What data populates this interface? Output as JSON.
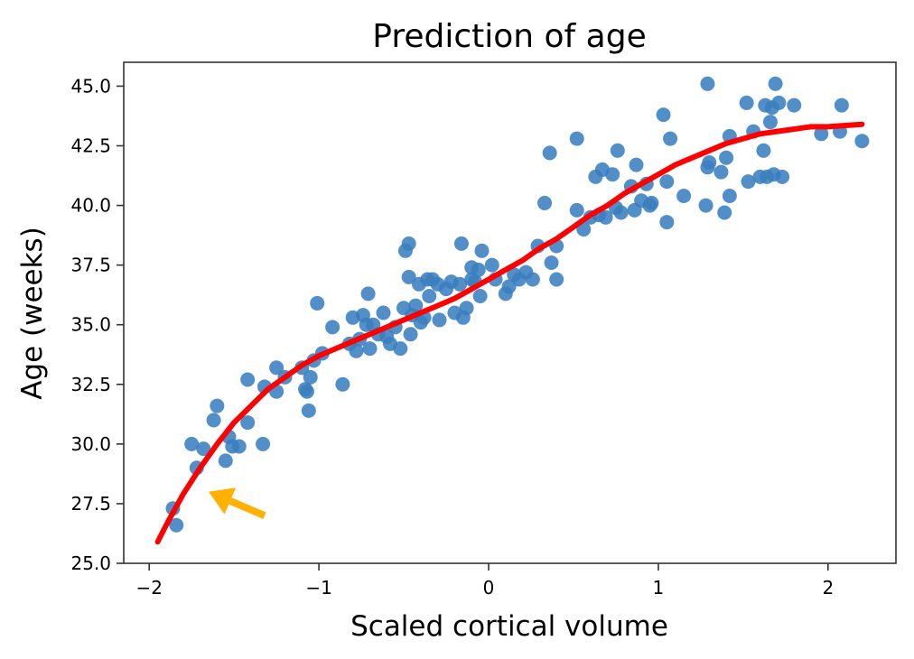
{
  "chart_data": {
    "type": "scatter",
    "title": "Prediction of age",
    "xlabel": "Scaled cortical volume",
    "ylabel": "Age (weeks)",
    "xlim": [
      -2.15,
      2.4
    ],
    "ylim": [
      25.0,
      46.0
    ],
    "x_ticks": [
      -2,
      -1,
      0,
      1,
      2
    ],
    "x_tick_labels": [
      "−2",
      "−1",
      "0",
      "1",
      "2"
    ],
    "y_ticks": [
      25.0,
      27.5,
      30.0,
      32.5,
      35.0,
      37.5,
      40.0,
      42.5,
      45.0
    ],
    "y_tick_labels": [
      "25.0",
      "27.5",
      "30.0",
      "32.5",
      "35.0",
      "37.5",
      "40.0",
      "42.5",
      "45.0"
    ],
    "grid": false,
    "colors": {
      "points": "#3a7ebf",
      "fit": "#ff0000",
      "arrow": "#ffb000"
    },
    "series": [
      {
        "type": "scatter",
        "points": [
          [
            -1.86,
            27.3
          ],
          [
            -1.84,
            26.6
          ],
          [
            -1.75,
            30.0
          ],
          [
            -1.72,
            29.0
          ],
          [
            -1.68,
            29.8
          ],
          [
            -1.62,
            31.0
          ],
          [
            -1.6,
            31.6
          ],
          [
            -1.55,
            29.3
          ],
          [
            -1.53,
            30.3
          ],
          [
            -1.51,
            29.9
          ],
          [
            -1.47,
            29.9
          ],
          [
            -1.42,
            32.7
          ],
          [
            -1.42,
            30.9
          ],
          [
            -1.33,
            30.0
          ],
          [
            -1.32,
            32.4
          ],
          [
            -1.25,
            33.2
          ],
          [
            -1.25,
            32.2
          ],
          [
            -1.2,
            32.8
          ],
          [
            -1.1,
            33.2
          ],
          [
            -1.08,
            32.3
          ],
          [
            -1.07,
            32.2
          ],
          [
            -1.06,
            31.4
          ],
          [
            -1.05,
            32.8
          ],
          [
            -1.03,
            33.5
          ],
          [
            -1.01,
            35.9
          ],
          [
            -0.98,
            33.8
          ],
          [
            -0.92,
            34.9
          ],
          [
            -0.86,
            32.5
          ],
          [
            -0.82,
            34.2
          ],
          [
            -0.8,
            35.3
          ],
          [
            -0.78,
            33.9
          ],
          [
            -0.76,
            34.4
          ],
          [
            -0.74,
            35.4
          ],
          [
            -0.72,
            35.0
          ],
          [
            -0.71,
            36.3
          ],
          [
            -0.7,
            34.0
          ],
          [
            -0.68,
            35.0
          ],
          [
            -0.65,
            34.6
          ],
          [
            -0.62,
            35.5
          ],
          [
            -0.6,
            34.5
          ],
          [
            -0.58,
            34.2
          ],
          [
            -0.55,
            34.9
          ],
          [
            -0.52,
            34.0
          ],
          [
            -0.5,
            35.7
          ],
          [
            -0.49,
            38.1
          ],
          [
            -0.47,
            38.4
          ],
          [
            -0.47,
            37.0
          ],
          [
            -0.46,
            34.6
          ],
          [
            -0.45,
            35.4
          ],
          [
            -0.43,
            35.8
          ],
          [
            -0.41,
            36.7
          ],
          [
            -0.4,
            35.1
          ],
          [
            -0.38,
            35.3
          ],
          [
            -0.36,
            36.9
          ],
          [
            -0.35,
            36.2
          ],
          [
            -0.33,
            36.9
          ],
          [
            -0.3,
            36.7
          ],
          [
            -0.29,
            35.2
          ],
          [
            -0.25,
            36.5
          ],
          [
            -0.22,
            36.8
          ],
          [
            -0.2,
            35.5
          ],
          [
            -0.17,
            36.7
          ],
          [
            -0.16,
            38.4
          ],
          [
            -0.15,
            35.3
          ],
          [
            -0.13,
            35.7
          ],
          [
            -0.1,
            36.9
          ],
          [
            -0.1,
            37.4
          ],
          [
            -0.08,
            36.8
          ],
          [
            -0.06,
            37.3
          ],
          [
            -0.05,
            36.2
          ],
          [
            -0.04,
            38.1
          ],
          [
            0.02,
            37.5
          ],
          [
            0.04,
            36.9
          ],
          [
            0.1,
            36.3
          ],
          [
            0.12,
            36.6
          ],
          [
            0.15,
            37.1
          ],
          [
            0.18,
            36.9
          ],
          [
            0.22,
            37.2
          ],
          [
            0.26,
            36.9
          ],
          [
            0.29,
            38.3
          ],
          [
            0.33,
            40.1
          ],
          [
            0.36,
            42.2
          ],
          [
            0.37,
            37.6
          ],
          [
            0.4,
            38.3
          ],
          [
            0.4,
            36.9
          ],
          [
            0.52,
            39.8
          ],
          [
            0.52,
            42.8
          ],
          [
            0.56,
            39.0
          ],
          [
            0.6,
            39.5
          ],
          [
            0.63,
            41.2
          ],
          [
            0.65,
            39.6
          ],
          [
            0.67,
            41.5
          ],
          [
            0.69,
            39.5
          ],
          [
            0.73,
            41.3
          ],
          [
            0.75,
            39.9
          ],
          [
            0.76,
            42.3
          ],
          [
            0.78,
            39.7
          ],
          [
            0.84,
            40.8
          ],
          [
            0.86,
            39.8
          ],
          [
            0.87,
            41.7
          ],
          [
            0.9,
            40.2
          ],
          [
            0.93,
            40.9
          ],
          [
            0.95,
            40.0
          ],
          [
            0.96,
            40.1
          ],
          [
            1.03,
            43.8
          ],
          [
            1.05,
            41.0
          ],
          [
            1.05,
            39.3
          ],
          [
            1.07,
            42.8
          ],
          [
            1.15,
            40.4
          ],
          [
            1.28,
            40.0
          ],
          [
            1.29,
            41.6
          ],
          [
            1.29,
            45.1
          ],
          [
            1.3,
            41.8
          ],
          [
            1.37,
            41.4
          ],
          [
            1.39,
            39.7
          ],
          [
            1.4,
            42.0
          ],
          [
            1.42,
            40.4
          ],
          [
            1.42,
            42.9
          ],
          [
            1.52,
            44.3
          ],
          [
            1.53,
            41.0
          ],
          [
            1.56,
            43.1
          ],
          [
            1.6,
            41.2
          ],
          [
            1.62,
            42.3
          ],
          [
            1.63,
            44.2
          ],
          [
            1.64,
            41.2
          ],
          [
            1.66,
            43.5
          ],
          [
            1.67,
            44.1
          ],
          [
            1.68,
            41.3
          ],
          [
            1.69,
            45.1
          ],
          [
            1.71,
            44.3
          ],
          [
            1.73,
            41.2
          ],
          [
            1.8,
            44.2
          ],
          [
            1.96,
            43.0
          ],
          [
            2.07,
            43.1
          ],
          [
            2.08,
            44.2
          ],
          [
            2.2,
            42.7
          ]
        ]
      },
      {
        "type": "line",
        "x": [
          -1.95,
          -1.9,
          -1.8,
          -1.7,
          -1.6,
          -1.5,
          -1.4,
          -1.3,
          -1.2,
          -1.1,
          -1.0,
          -0.9,
          -0.8,
          -0.7,
          -0.6,
          -0.5,
          -0.4,
          -0.3,
          -0.2,
          -0.1,
          0.0,
          0.1,
          0.2,
          0.3,
          0.4,
          0.5,
          0.6,
          0.7,
          0.8,
          0.9,
          1.0,
          1.1,
          1.2,
          1.3,
          1.4,
          1.5,
          1.6,
          1.7,
          1.8,
          1.9,
          2.0,
          2.1,
          2.2
        ],
        "y": [
          25.9,
          26.6,
          27.9,
          29.0,
          30.0,
          30.9,
          31.6,
          32.3,
          32.8,
          33.3,
          33.7,
          34.0,
          34.3,
          34.6,
          34.9,
          35.2,
          35.5,
          35.8,
          36.1,
          36.5,
          36.9,
          37.3,
          37.7,
          38.2,
          38.6,
          39.1,
          39.6,
          40.0,
          40.5,
          40.9,
          41.3,
          41.7,
          42.0,
          42.3,
          42.6,
          42.8,
          43.0,
          43.1,
          43.2,
          43.3,
          43.3,
          43.35,
          43.4
        ]
      }
    ],
    "annotations": [
      {
        "type": "arrow",
        "from": [
          -1.32,
          27.0
        ],
        "to": [
          -1.65,
          28.0
        ]
      }
    ]
  }
}
